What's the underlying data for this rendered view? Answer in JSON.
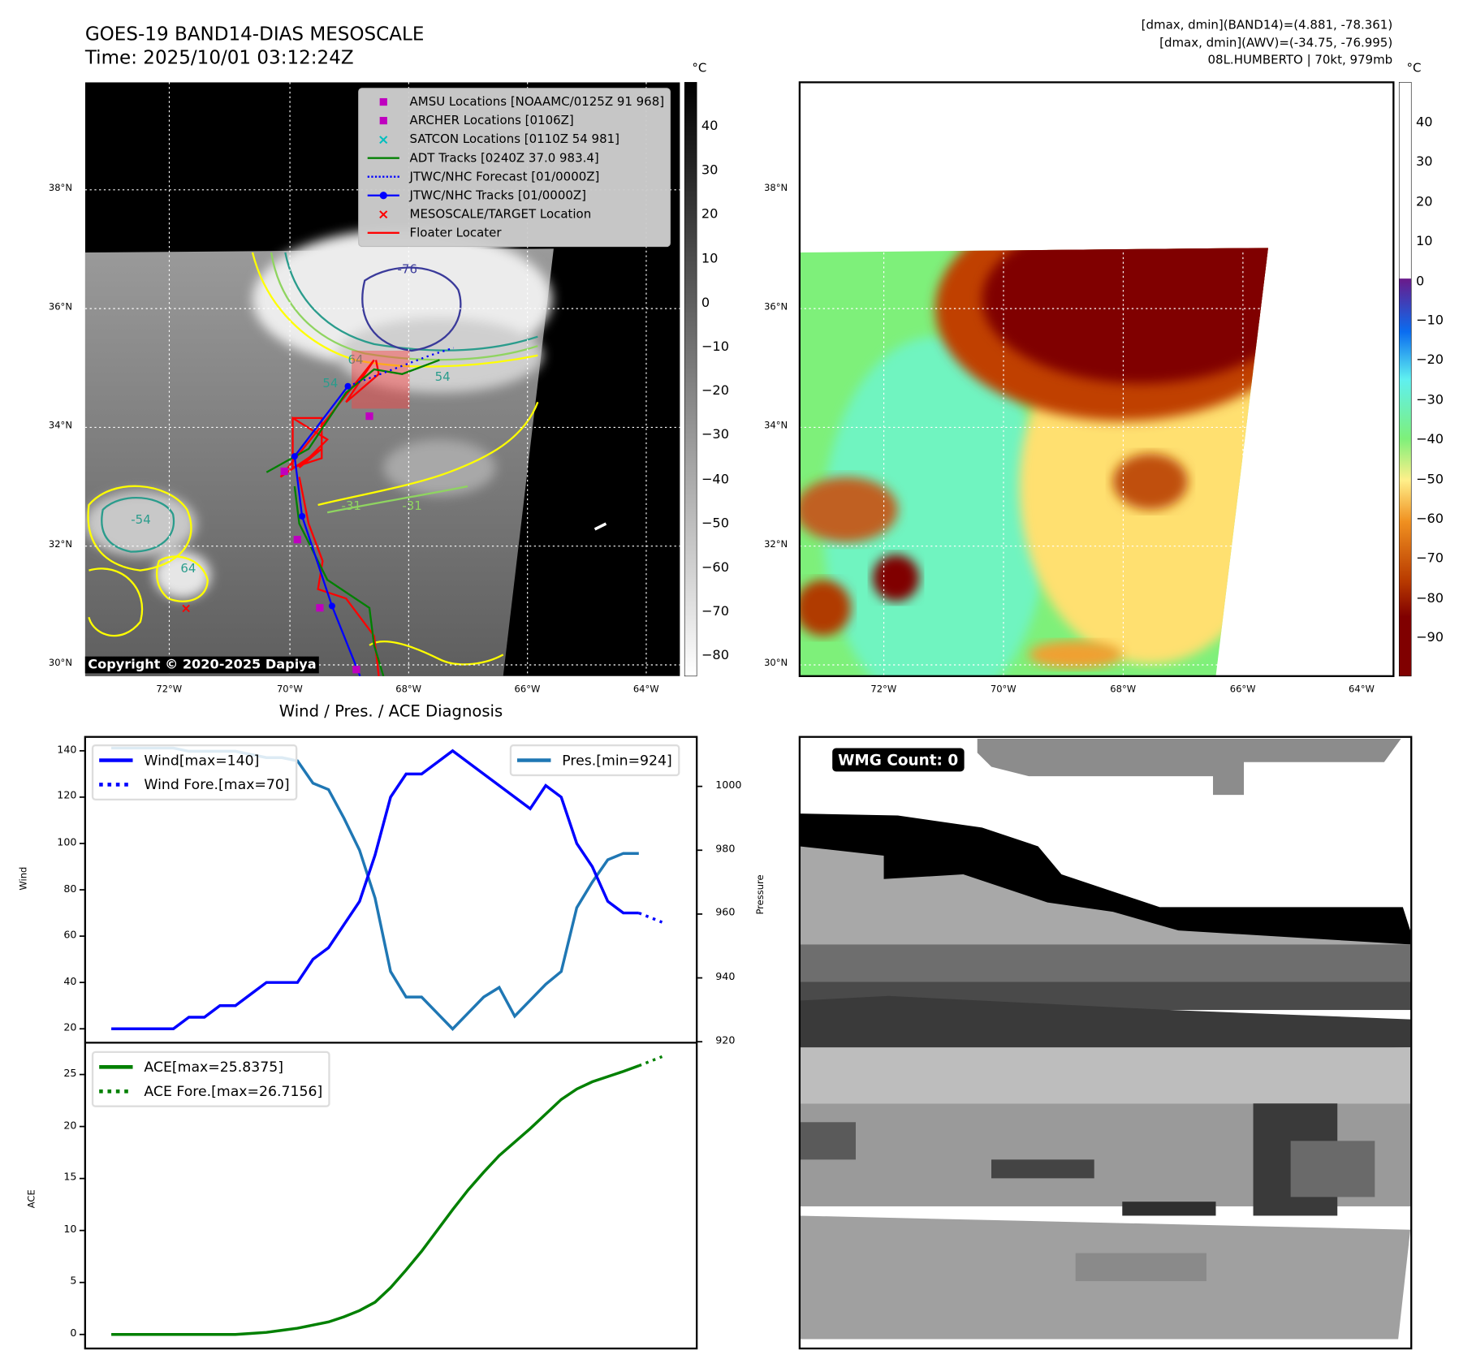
{
  "header": {
    "title": "GOES-19 BAND14-DIAS MESOSCALE",
    "time": "Time: 2025/10/01 03:12:24Z",
    "info_line1": "[dmax, dmin](BAND14)=(4.881, -78.361)",
    "info_line2": "[dmax, dmin](AWV)=(-34.75, -76.995)",
    "info_line3": "08L.HUMBERTO | 70kt, 979mb"
  },
  "left_map": {
    "unit": "°C",
    "colorbar_ticks": [
      "40",
      "30",
      "20",
      "10",
      "0",
      "−10",
      "−20",
      "−30",
      "−40",
      "−50",
      "−60",
      "−70",
      "−80"
    ],
    "lat_labels": [
      "38°N",
      "36°N",
      "34°N",
      "32°N",
      "30°N"
    ],
    "lon_labels": [
      "72°W",
      "70°W",
      "68°W",
      "66°W",
      "64°W"
    ],
    "contour_labels": [
      "-76",
      "64",
      "54",
      "54",
      "-31",
      "-31",
      "-54",
      "64"
    ],
    "copyright": "Copyright © 2020-2025 Dapiya",
    "legend": [
      {
        "label": "AMSU Locations [NOAAMC/0125Z 91 968]",
        "icon": "square-marker",
        "color": "#bf00bf"
      },
      {
        "label": "ARCHER Locations [0106Z]",
        "icon": "square-marker",
        "color": "#bf00bf"
      },
      {
        "label": "SATCON Locations [0110Z 54 981]",
        "icon": "x-marker",
        "color": "#00bfbf"
      },
      {
        "label": "ADT Tracks [0240Z 37.0 983.4]",
        "icon": "solid-line",
        "color": "#008000"
      },
      {
        "label": "JTWC/NHC Forecast [01/0000Z]",
        "icon": "dotted-line",
        "color": "#0000ff"
      },
      {
        "label": "JTWC/NHC Tracks [01/0000Z]",
        "icon": "line-dot",
        "color": "#0000ff"
      },
      {
        "label": "MESOSCALE/TARGET Location",
        "icon": "x-marker",
        "color": "#ff0000"
      },
      {
        "label": "Floater Locater",
        "icon": "solid-line",
        "color": "#ff0000"
      }
    ]
  },
  "right_map": {
    "unit": "°C",
    "colorbar_ticks": [
      "40",
      "30",
      "20",
      "10",
      "0",
      "−10",
      "−20",
      "−30",
      "−40",
      "−50",
      "−60",
      "−70",
      "−80",
      "−90"
    ],
    "lat_labels": [
      "38°N",
      "36°N",
      "34°N",
      "32°N",
      "30°N"
    ],
    "lon_labels": [
      "72°W",
      "70°W",
      "68°W",
      "66°W",
      "64°W"
    ]
  },
  "wmg_panel": {
    "label": "WMG Count: 0"
  },
  "chart_data": [
    {
      "type": "line",
      "title": "Wind / Pres. / ACE Diagnosis",
      "ylabel": "Wind",
      "y2label": "Pressure",
      "ylim": [
        14,
        146
      ],
      "y2lim": [
        919.7,
        1015.5
      ],
      "yticks": [
        "20",
        "40",
        "60",
        "80",
        "100",
        "120",
        "140"
      ],
      "y2ticks": [
        "920",
        "940",
        "960",
        "980",
        "1000"
      ],
      "series": [
        {
          "name": "Wind[max=140]",
          "color": "#0000ff",
          "style": "solid",
          "x": [
            0,
            1,
            2,
            3,
            4,
            5,
            6,
            7,
            8,
            9,
            10,
            11,
            12,
            13,
            14,
            15,
            16,
            17,
            18,
            19,
            20,
            21,
            22,
            23,
            24,
            25,
            26,
            27,
            28,
            29,
            30,
            31,
            32,
            33,
            34
          ],
          "values": [
            20,
            20,
            20,
            20,
            20,
            25,
            25,
            30,
            30,
            35,
            40,
            40,
            40,
            50,
            55,
            65,
            75,
            95,
            120,
            130,
            130,
            135,
            140,
            135,
            130,
            125,
            120,
            115,
            125,
            120,
            100,
            90,
            75,
            70,
            70
          ]
        },
        {
          "name": "Wind Fore.[max=70]",
          "color": "#0000ff",
          "style": "dotted",
          "x": [
            34,
            35.5
          ],
          "values": [
            70,
            66
          ]
        },
        {
          "name": "Pres.[min=924]",
          "color": "#1f77b4",
          "style": "solid",
          "axis": "right",
          "x": [
            0,
            1,
            2,
            3,
            4,
            5,
            6,
            7,
            8,
            9,
            10,
            11,
            12,
            13,
            14,
            15,
            16,
            17,
            18,
            19,
            20,
            21,
            22,
            23,
            24,
            25,
            26,
            27,
            28,
            29,
            30,
            31,
            32,
            33,
            34
          ],
          "values": [
            1012,
            1012,
            1012,
            1012,
            1012,
            1011,
            1011,
            1011,
            1011,
            1010,
            1009,
            1009,
            1008,
            1001,
            999,
            990,
            980,
            965,
            942,
            934,
            934,
            929,
            924,
            929,
            934,
            937,
            928,
            933,
            938,
            942,
            962,
            970,
            977,
            979,
            979
          ]
        }
      ]
    },
    {
      "type": "line",
      "ylabel": "ACE",
      "ylim": [
        -1.35,
        28.06
      ],
      "yticks": [
        "0",
        "5",
        "10",
        "15",
        "20",
        "25"
      ],
      "series": [
        {
          "name": "ACE[max=25.8375]",
          "color": "#008000",
          "style": "solid",
          "x": [
            0,
            1,
            2,
            3,
            4,
            5,
            6,
            7,
            8,
            9,
            10,
            11,
            12,
            13,
            14,
            15,
            16,
            17,
            18,
            19,
            20,
            21,
            22,
            23,
            24,
            25,
            26,
            27,
            28,
            29,
            30,
            31,
            32,
            33,
            34
          ],
          "values": [
            0,
            0,
            0,
            0,
            0,
            0,
            0,
            0,
            0,
            0.1,
            0.2,
            0.4,
            0.6,
            0.9,
            1.2,
            1.7,
            2.3,
            3.1,
            4.5,
            6.2,
            8,
            10,
            12,
            13.9,
            15.6,
            17.2,
            18.5,
            19.8,
            21.2,
            22.6,
            23.6,
            24.3,
            24.8,
            25.3,
            25.84
          ]
        },
        {
          "name": "ACE Fore.[max=26.7156]",
          "color": "#008000",
          "style": "dotted",
          "x": [
            34,
            35.5
          ],
          "values": [
            25.84,
            26.72
          ]
        }
      ]
    }
  ]
}
